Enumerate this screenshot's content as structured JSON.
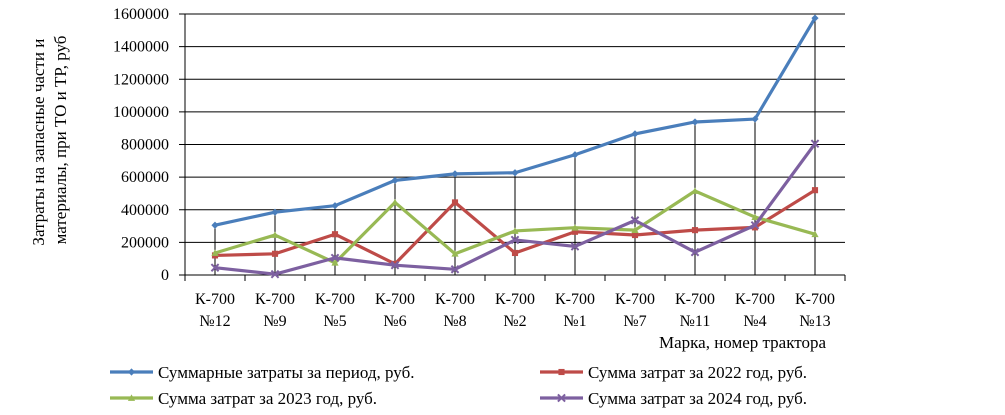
{
  "chart_data": {
    "type": "line",
    "categories": [
      [
        "К-700",
        "№12"
      ],
      [
        "К-700",
        "№9"
      ],
      [
        "К-700",
        "№5"
      ],
      [
        "К-700",
        "№6"
      ],
      [
        "К-700",
        "№8"
      ],
      [
        "К-700",
        "№2"
      ],
      [
        "К-700",
        "№1"
      ],
      [
        "К-700",
        "№7"
      ],
      [
        "К-700",
        "№11"
      ],
      [
        "К-700",
        "№4"
      ],
      [
        "К-700",
        "№13"
      ]
    ],
    "xlabel": "Марка, номер трактора",
    "ylabel": [
      "Затраты на запасные части и",
      "материалы,  при ТО и ТР, руб"
    ],
    "ylim": [
      0,
      1600000
    ],
    "yticks": [
      "0",
      "200000",
      "400000",
      "600000",
      "800000",
      "1000000",
      "1200000",
      "1400000",
      "1600000"
    ],
    "grid": "horizontal and vertical drop lines",
    "legend_position": "bottom",
    "series": [
      {
        "name": "Суммарные затраты за период, руб.",
        "color": "#4a7ebb",
        "marker": "diamond",
        "values": [
          305000,
          385000,
          425000,
          580000,
          620000,
          627000,
          737000,
          865000,
          938000,
          956000,
          1575000
        ]
      },
      {
        "name": "Сумма затрат за 2022 год, руб.",
        "color": "#be4b48",
        "marker": "square",
        "values": [
          120000,
          130000,
          250000,
          68000,
          445000,
          135000,
          265000,
          245000,
          275000,
          292000,
          520000
        ]
      },
      {
        "name": "Сумма затрат за 2023 год, руб.",
        "color": "#98b954",
        "marker": "triangle",
        "values": [
          135000,
          245000,
          75000,
          445000,
          130000,
          270000,
          290000,
          275000,
          515000,
          355000,
          250000
        ]
      },
      {
        "name": "Сумма затрат за 2024 год, руб.",
        "color": "#7d60a0",
        "marker": "x",
        "values": [
          45000,
          5000,
          105000,
          60000,
          35000,
          215000,
          175000,
          335000,
          140000,
          305000,
          805000
        ]
      }
    ]
  }
}
